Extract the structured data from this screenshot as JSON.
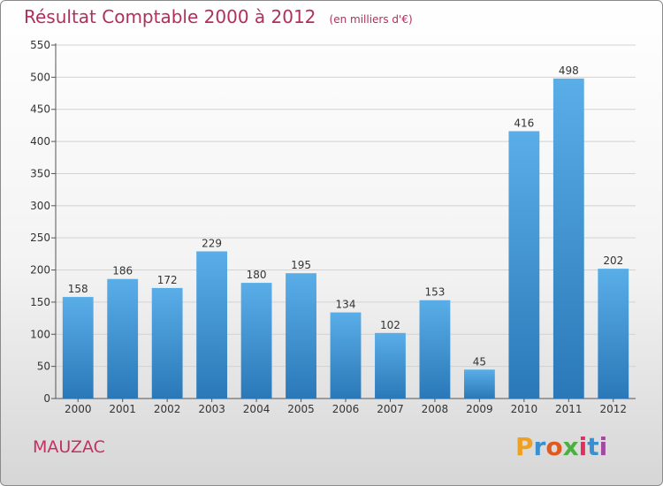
{
  "header": {
    "title": "Résultat Comptable 2000 à 2012",
    "subtitle": "(en milliers d'€)"
  },
  "footer": {
    "commune": "MAUZAC",
    "logo_text": "Proxiti"
  },
  "colors": {
    "title": "#b0305a",
    "bar_top": "#5aaee8",
    "bar_bottom": "#2a78b8",
    "logo_letters": [
      "#f0a020",
      "#3a8fd0",
      "#e05a20",
      "#4ab040",
      "#e03060",
      "#3a8fd0",
      "#a04aa0"
    ]
  },
  "chart_data": {
    "type": "bar",
    "categories": [
      "2000",
      "2001",
      "2002",
      "2003",
      "2004",
      "2005",
      "2006",
      "2007",
      "2008",
      "2009",
      "2010",
      "2011",
      "2012"
    ],
    "values": [
      158,
      186,
      172,
      229,
      180,
      195,
      134,
      102,
      153,
      45,
      416,
      498,
      202
    ],
    "yticks": [
      0,
      50,
      100,
      150,
      200,
      250,
      300,
      350,
      400,
      450,
      500,
      550
    ],
    "ylim": [
      0,
      550
    ],
    "grid": true,
    "legend": "none"
  }
}
